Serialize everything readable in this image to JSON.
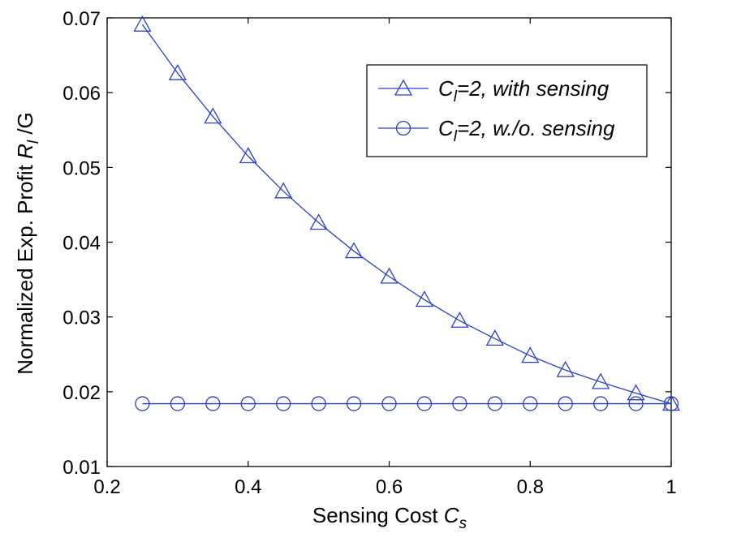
{
  "chart_data": {
    "type": "line",
    "xlabel": {
      "main": "Sensing Cost ",
      "var": "C",
      "sub": "s"
    },
    "ylabel": {
      "main": "Normalized Exp. Profit ",
      "var": "R",
      "sub": "l",
      "tail": " /G"
    },
    "xlim": [
      0.2,
      1.0
    ],
    "ylim": [
      0.01,
      0.07
    ],
    "xticks": [
      "0.2",
      "0.4",
      "0.6",
      "0.8",
      "1"
    ],
    "yticks": [
      "0.01",
      "0.02",
      "0.03",
      "0.04",
      "0.05",
      "0.06",
      "0.07"
    ],
    "grid": false,
    "legend_position": "top-right",
    "x": [
      0.25,
      0.3,
      0.35,
      0.4,
      0.45,
      0.5,
      0.55,
      0.6,
      0.65,
      0.7,
      0.75,
      0.8,
      0.85,
      0.9,
      0.95,
      1.0
    ],
    "series": [
      {
        "name": "with sensing",
        "legend": {
          "var": "C",
          "sub": "l",
          "rest": "=2, with sensing"
        },
        "marker": "triangle",
        "color": "#2b3fcc",
        "values": [
          0.0691,
          0.0626,
          0.0568,
          0.0515,
          0.0468,
          0.0426,
          0.0388,
          0.0354,
          0.0323,
          0.0295,
          0.0271,
          0.0248,
          0.0229,
          0.0213,
          0.0198,
          0.0184
        ]
      },
      {
        "name": "w./o. sensing",
        "legend": {
          "var": "C",
          "sub": "l",
          "rest": "=2, w./o. sensing"
        },
        "marker": "circle",
        "color": "#2b3fcc",
        "values": [
          0.0184,
          0.0184,
          0.0184,
          0.0184,
          0.0184,
          0.0184,
          0.0184,
          0.0184,
          0.0184,
          0.0184,
          0.0184,
          0.0184,
          0.0184,
          0.0184,
          0.0184,
          0.0184
        ]
      }
    ]
  }
}
